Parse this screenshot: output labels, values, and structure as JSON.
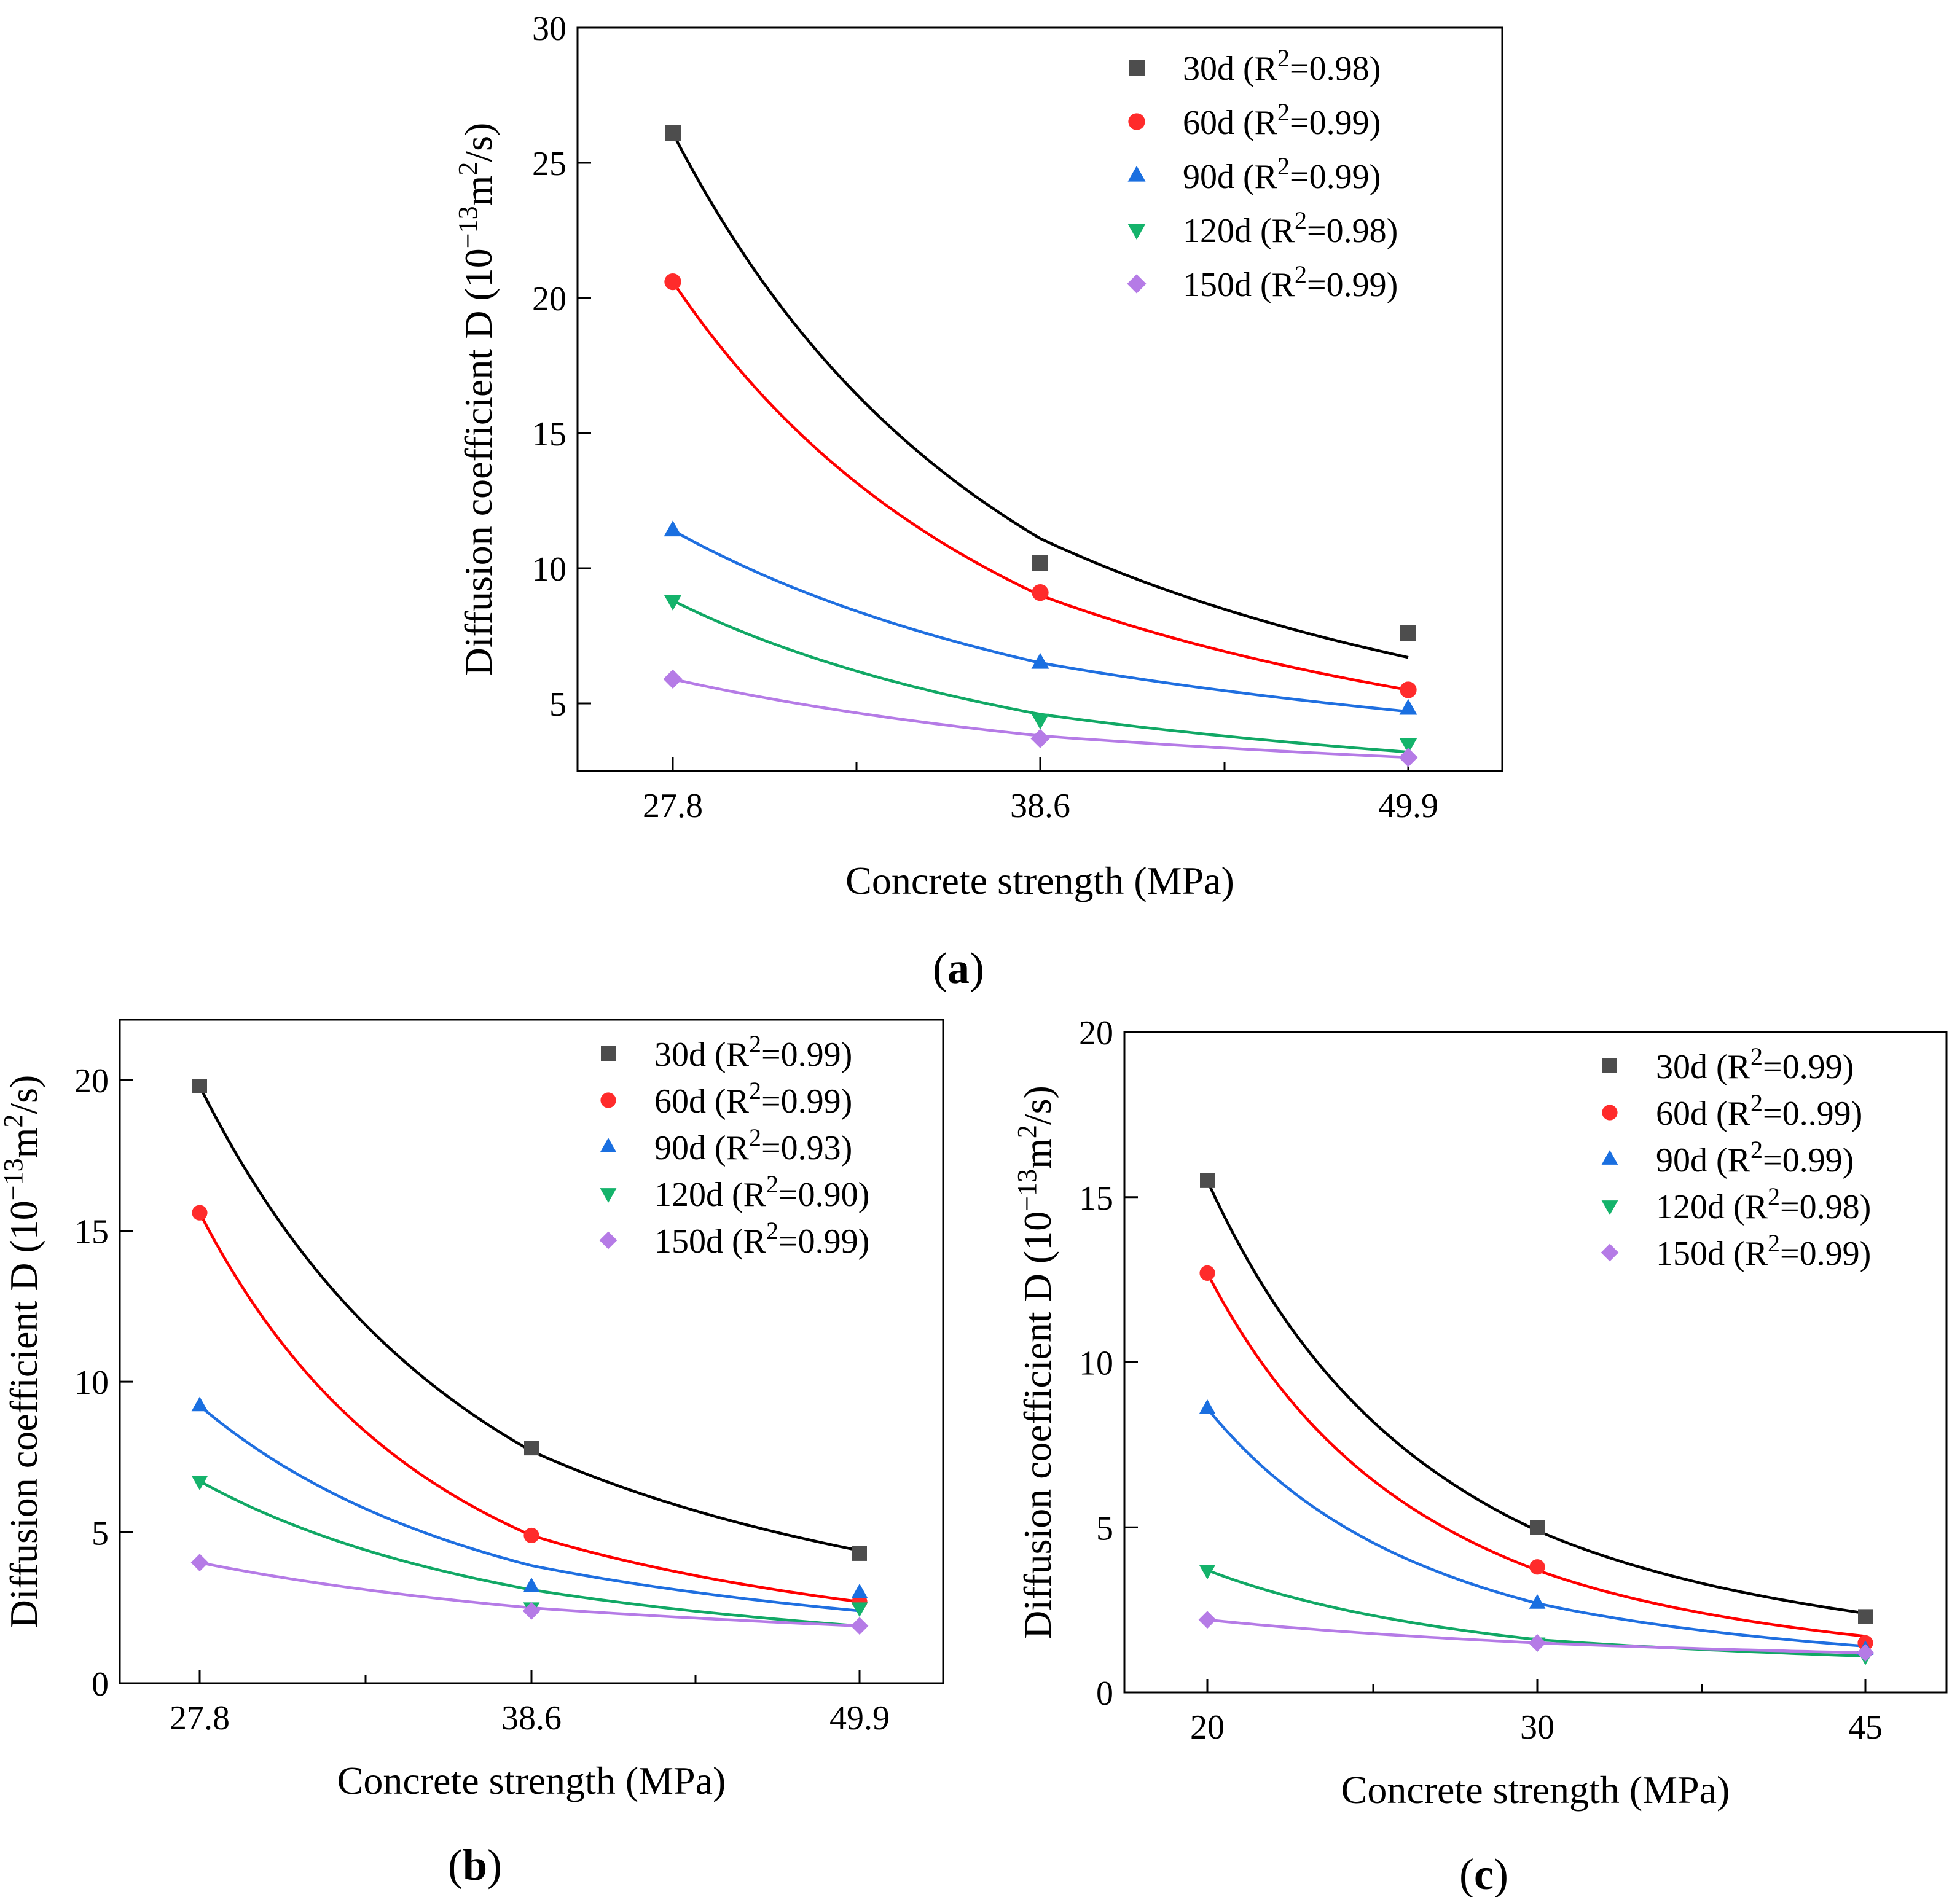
{
  "figure": {
    "panel_labels": [
      {
        "open": "(",
        "letter": "a",
        "close": ")"
      },
      {
        "open": "(",
        "letter": "b",
        "close": ")"
      },
      {
        "open": "(",
        "letter": "c",
        "close": ")"
      }
    ]
  },
  "series_colors": {
    "30d": "#4d4d4d",
    "60d": "#ff2b2b",
    "90d": "#1a6fe0",
    "120d": "#14b36b",
    "150d": "#b57be6"
  },
  "fit_colors": {
    "30d": "#000000",
    "60d": "#ff0000",
    "90d": "#1f6fe0",
    "120d": "#11a865",
    "150d": "#b57be6"
  },
  "chart_data": [
    {
      "id": "a",
      "type": "scatter",
      "title": "",
      "xlabel": "Concrete strength (MPa)",
      "ylabel": {
        "pre": "Diffusion coefficient D (10",
        "exp": "−13",
        "mid": "m",
        "exp2": "2",
        "post": "/s)"
      },
      "categories": [
        "27.8",
        "38.6",
        "49.9"
      ],
      "x_ticks": [
        "27.8",
        "38.6",
        "49.9"
      ],
      "ylim": [
        2.5,
        30
      ],
      "y_ticks": [
        "5",
        "10",
        "15",
        "20",
        "25",
        "30"
      ],
      "legend_position": "top-right",
      "series": [
        {
          "name": "30d",
          "r2": "0.98",
          "marker": "square",
          "values": [
            26.1,
            10.2,
            7.6
          ],
          "fit": [
            26.1,
            11.1,
            6.7
          ]
        },
        {
          "name": "60d",
          "r2": "0.99",
          "marker": "circle",
          "values": [
            20.6,
            9.1,
            5.5
          ],
          "fit": [
            20.6,
            9.0,
            5.5
          ]
        },
        {
          "name": "90d",
          "r2": "0.99",
          "marker": "triangle-up",
          "values": [
            11.4,
            6.5,
            4.8
          ],
          "fit": [
            11.4,
            6.5,
            4.7
          ]
        },
        {
          "name": "120d",
          "r2": "0.98",
          "marker": "triangle-down",
          "values": [
            8.8,
            4.4,
            3.5
          ],
          "fit": [
            8.8,
            4.6,
            3.2
          ]
        },
        {
          "name": "150d",
          "r2": "0.99",
          "marker": "diamond",
          "values": [
            5.9,
            3.7,
            3.0
          ],
          "fit": [
            5.9,
            3.8,
            3.0
          ]
        }
      ],
      "legend": [
        {
          "label": "30d (R",
          "sup": "2",
          "value": "=0.98)"
        },
        {
          "label": "60d (R",
          "sup": "2",
          "value": "=0.99)"
        },
        {
          "label": "90d (R",
          "sup": "2",
          "value": "=0.99)"
        },
        {
          "label": "120d (R",
          "sup": "2",
          "value": "=0.98)"
        },
        {
          "label": "150d (R",
          "sup": "2",
          "value": "=0.99)"
        }
      ]
    },
    {
      "id": "b",
      "type": "scatter",
      "title": "",
      "xlabel": "Concrete strength (MPa)",
      "ylabel": {
        "pre": "Diffusion coefficient D (10",
        "exp": "−13",
        "mid": "m",
        "exp2": "2",
        "post": "/s)"
      },
      "categories": [
        "27.8",
        "38.6",
        "49.9"
      ],
      "x_ticks": [
        "27.8",
        "38.6",
        "49.9"
      ],
      "ylim": [
        0,
        22
      ],
      "y_ticks": [
        "0",
        "5",
        "10",
        "15",
        "20"
      ],
      "legend_position": "top-right",
      "series": [
        {
          "name": "30d",
          "r2": "0.99",
          "marker": "square",
          "values": [
            19.8,
            7.8,
            4.3
          ],
          "fit": [
            19.8,
            7.7,
            4.4
          ]
        },
        {
          "name": "60d",
          "r2": "0.99",
          "marker": "circle",
          "values": [
            15.6,
            4.9,
            2.7
          ],
          "fit": [
            15.6,
            4.9,
            2.7
          ]
        },
        {
          "name": "90d",
          "r2": "0.93",
          "marker": "triangle-up",
          "values": [
            9.2,
            3.2,
            3.0
          ],
          "fit": [
            9.2,
            3.9,
            2.4
          ]
        },
        {
          "name": "120d",
          "r2": "0.90",
          "marker": "triangle-down",
          "values": [
            6.7,
            2.5,
            2.5
          ],
          "fit": [
            6.7,
            3.1,
            1.9
          ]
        },
        {
          "name": "150d",
          "r2": "0.99",
          "marker": "diamond",
          "values": [
            4.0,
            2.4,
            1.9
          ],
          "fit": [
            4.0,
            2.5,
            1.9
          ]
        }
      ],
      "legend": [
        {
          "label": "30d (R",
          "sup": "2",
          "value": "=0.99)"
        },
        {
          "label": "60d (R",
          "sup": "2",
          "value": "=0.99)"
        },
        {
          "label": "90d (R",
          "sup": "2",
          "value": "=0.93)"
        },
        {
          "label": "120d (R",
          "sup": "2",
          "value": "=0.90)"
        },
        {
          "label": "150d (R",
          "sup": "2",
          "value": "=0.99)"
        }
      ]
    },
    {
      "id": "c",
      "type": "scatter",
      "title": "",
      "xlabel": "Concrete strength (MPa)",
      "ylabel": {
        "pre": "Diffusion coefficient D (10",
        "exp": "−13",
        "mid": "m",
        "exp2": "2",
        "post": "/s)"
      },
      "categories": [
        "20",
        "30",
        "45"
      ],
      "x_ticks": [
        "20",
        "30",
        "45"
      ],
      "ylim": [
        0,
        20
      ],
      "y_ticks": [
        "0",
        "5",
        "10",
        "15",
        "20"
      ],
      "legend_position": "top-right",
      "series": [
        {
          "name": "30d",
          "r2": "0.99",
          "marker": "square",
          "values": [
            15.5,
            5.0,
            2.3
          ],
          "fit": [
            15.5,
            4.9,
            2.4
          ]
        },
        {
          "name": "60d",
          "r2": "0..99",
          "marker": "circle",
          "values": [
            12.7,
            3.8,
            1.5
          ],
          "fit": [
            12.7,
            3.7,
            1.7
          ]
        },
        {
          "name": "90d",
          "r2": "0.99",
          "marker": "triangle-up",
          "values": [
            8.6,
            2.7,
            1.3
          ],
          "fit": [
            8.6,
            2.7,
            1.4
          ]
        },
        {
          "name": "120d",
          "r2": "0.98",
          "marker": "triangle-down",
          "values": [
            3.7,
            1.5,
            1.1
          ],
          "fit": [
            3.7,
            1.6,
            1.1
          ]
        },
        {
          "name": "150d",
          "r2": "0.99",
          "marker": "diamond",
          "values": [
            2.2,
            1.5,
            1.2
          ],
          "fit": [
            2.2,
            1.5,
            1.2
          ]
        }
      ],
      "legend": [
        {
          "label": "30d (R",
          "sup": "2",
          "value": "=0.99)"
        },
        {
          "label": "60d (R",
          "sup": "2",
          "value": "=0..99)"
        },
        {
          "label": "90d (R",
          "sup": "2",
          "value": "=0.99)"
        },
        {
          "label": "120d (R",
          "sup": "2",
          "value": "=0.98)"
        },
        {
          "label": "150d (R",
          "sup": "2",
          "value": "=0.99)"
        }
      ]
    }
  ]
}
